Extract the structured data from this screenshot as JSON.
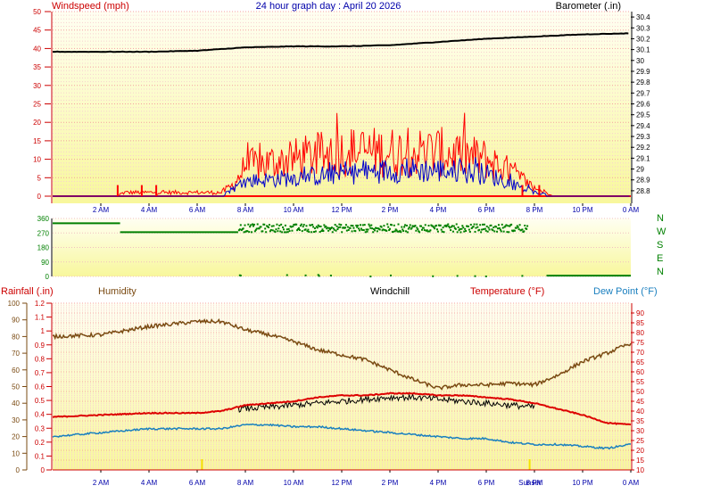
{
  "title": "24 hour graph day : April 20 2026",
  "colors": {
    "bg_top": "#fffff2",
    "bg_bottom": "#f8f79c",
    "wind_gust": "#ff0000",
    "wind_speed": "#0000cc",
    "barometer": "#000000",
    "wind_dir": "#008000",
    "humidity": "#7a4a12",
    "windchill": "#000000",
    "temperature": "#dd0000",
    "dew_point": "#1a7fbf",
    "rainfall": "#c43c3c",
    "axis_text_blue": "#0000aa"
  },
  "labels": {
    "windspeed": "Windspeed (mph)",
    "barometer": "Barometer (.in)",
    "rainfall": "Rainfall (.in)",
    "humidity": "Humidity",
    "windchill": "Windchill",
    "temperature": "Temperature (°F)",
    "dew_point": "Dew Point (°F)",
    "sun_markers": "Sunset",
    "compass": [
      "N",
      "W",
      "S",
      "E",
      "N"
    ]
  },
  "chart_data": [
    {
      "type": "line",
      "title": "Windspeed (mph) / Barometer (.in)",
      "xticks": [
        "2 AM",
        "4 AM",
        "6 AM",
        "8 AM",
        "10 AM",
        "12 PM",
        "2 PM",
        "4 PM",
        "6 PM",
        "8 PM",
        "10 PM",
        "0 AM"
      ],
      "xrange_hours": [
        0,
        24
      ],
      "y_left": {
        "label": "Windspeed (mph)",
        "range": [
          0,
          50
        ],
        "ticks": [
          0,
          5,
          10,
          15,
          20,
          25,
          30,
          35,
          40,
          45,
          50
        ]
      },
      "y_right": {
        "label": "Barometer (.in)",
        "range": [
          28.75,
          30.45
        ],
        "ticks": [
          "28.8",
          "28.9",
          "29",
          "29.1",
          "29.2",
          "29.3",
          "29.4",
          "29.5",
          "29.6",
          "29.7",
          "29.8",
          "29.9",
          "30",
          "30.1",
          "30.2",
          "30.3",
          "30.4"
        ]
      },
      "series": [
        {
          "name": "Barometer",
          "hours": [
            0,
            2,
            4,
            6,
            8,
            10,
            12,
            14,
            16,
            18,
            20,
            22,
            24
          ],
          "values": [
            30.08,
            30.08,
            30.08,
            30.09,
            30.12,
            30.13,
            30.13,
            30.14,
            30.17,
            30.2,
            30.22,
            30.24,
            30.25
          ]
        },
        {
          "name": "Wind Gust",
          "profile_hours": [
            0,
            2.5,
            3,
            7,
            7.5,
            8,
            10,
            12,
            14,
            16,
            18,
            19.2,
            20,
            21,
            24
          ],
          "profile_values": [
            0,
            0,
            1,
            1,
            3,
            8,
            10,
            12,
            12,
            12,
            10,
            6,
            2,
            0,
            0
          ]
        },
        {
          "name": "Wind Speed",
          "profile_hours": [
            0,
            7,
            8,
            10,
            12,
            14,
            16,
            18,
            19.2,
            20,
            21,
            24
          ],
          "profile_values": [
            0,
            0,
            4,
            5,
            6,
            7,
            7,
            6,
            3,
            1,
            0,
            0
          ]
        }
      ]
    },
    {
      "type": "scatter",
      "title": "Wind Direction",
      "y_range": [
        0,
        360
      ],
      "y_ticks": [
        0,
        90,
        180,
        270,
        360
      ],
      "compass_labels": [
        "N",
        "W",
        "S",
        "E",
        "N"
      ],
      "segments": [
        {
          "from_hour": 0.0,
          "to_hour": 2.8,
          "value": 330
        },
        {
          "from_hour": 2.8,
          "to_hour": 7.7,
          "value": 275
        },
        {
          "from_hour": 20.5,
          "to_hour": 24,
          "value": 5
        }
      ],
      "scatter_range_hours": [
        7.7,
        19.7
      ],
      "scatter_center_deg": 305
    },
    {
      "type": "line",
      "title": "Rainfall / Humidity / Windchill / Temperature / Dew Point",
      "xticks": [
        "2 AM",
        "4 AM",
        "6 AM",
        "8 AM",
        "10 AM",
        "12 PM",
        "2 PM",
        "4 PM",
        "6 PM",
        "8 PM",
        "10 PM",
        "0 AM"
      ],
      "y_left_rain": {
        "label": "Rainfall (.in)",
        "range": [
          0,
          1.2
        ],
        "ticks": [
          "0",
          "0.1",
          "0.2",
          "0.3",
          "0.4",
          "0.5",
          "0.6",
          "0.7",
          "0.8",
          "0.9",
          "1",
          "1.1",
          "1.2"
        ]
      },
      "y_left_humidity": {
        "label": "Humidity",
        "range": [
          0,
          100
        ],
        "ticks": [
          0,
          10,
          20,
          30,
          40,
          50,
          60,
          70,
          80,
          90,
          100
        ]
      },
      "y_right": {
        "label": "Temperature (°F)",
        "range": [
          10,
          95
        ],
        "ticks": [
          10,
          15,
          20,
          25,
          30,
          35,
          40,
          45,
          50,
          55,
          60,
          65,
          70,
          75,
          80,
          85,
          90
        ]
      },
      "series": [
        {
          "name": "Humidity",
          "hours": [
            0,
            2,
            4,
            6,
            7,
            8,
            9,
            10,
            11,
            12,
            13,
            14,
            15,
            16,
            17,
            18,
            19,
            20,
            21,
            22,
            23,
            24
          ],
          "values": [
            80,
            81,
            86,
            89,
            89,
            84,
            81,
            77,
            72,
            69,
            66,
            60,
            54,
            49,
            51,
            51,
            52,
            51,
            57,
            65,
            70,
            76
          ]
        },
        {
          "name": "Temperature",
          "hours": [
            0,
            2,
            4,
            6,
            7,
            8,
            9,
            10,
            11,
            12,
            13,
            14,
            15,
            16,
            17,
            18,
            19,
            20,
            21,
            22,
            23,
            24
          ],
          "values": [
            37,
            38,
            39,
            39,
            40,
            43,
            44,
            45,
            47,
            48,
            48,
            49,
            49,
            48,
            48,
            47,
            46,
            44,
            41,
            38,
            34,
            33
          ]
        },
        {
          "name": "Windchill",
          "hours": [
            7.7,
            9,
            10,
            11,
            12,
            13,
            14,
            15,
            16,
            17,
            18,
            19,
            20
          ],
          "values": [
            41,
            42,
            43,
            44,
            45,
            46,
            47,
            47,
            46,
            45,
            44,
            43,
            42
          ]
        },
        {
          "name": "Dew Point",
          "hours": [
            0,
            2,
            4,
            6,
            7,
            8,
            9,
            10,
            11,
            12,
            13,
            14,
            15,
            16,
            17,
            18,
            19,
            20,
            21,
            22,
            23,
            24
          ],
          "values": [
            27,
            29,
            31,
            31,
            31,
            33,
            33,
            32,
            32,
            31,
            30,
            29,
            28,
            27,
            26,
            26,
            24,
            23,
            23,
            22,
            21,
            23
          ]
        },
        {
          "name": "Rainfall",
          "hours": [
            0,
            24
          ],
          "values": [
            0,
            0
          ]
        }
      ],
      "sun_markers_hours": [
        6.2,
        19.8
      ]
    }
  ]
}
